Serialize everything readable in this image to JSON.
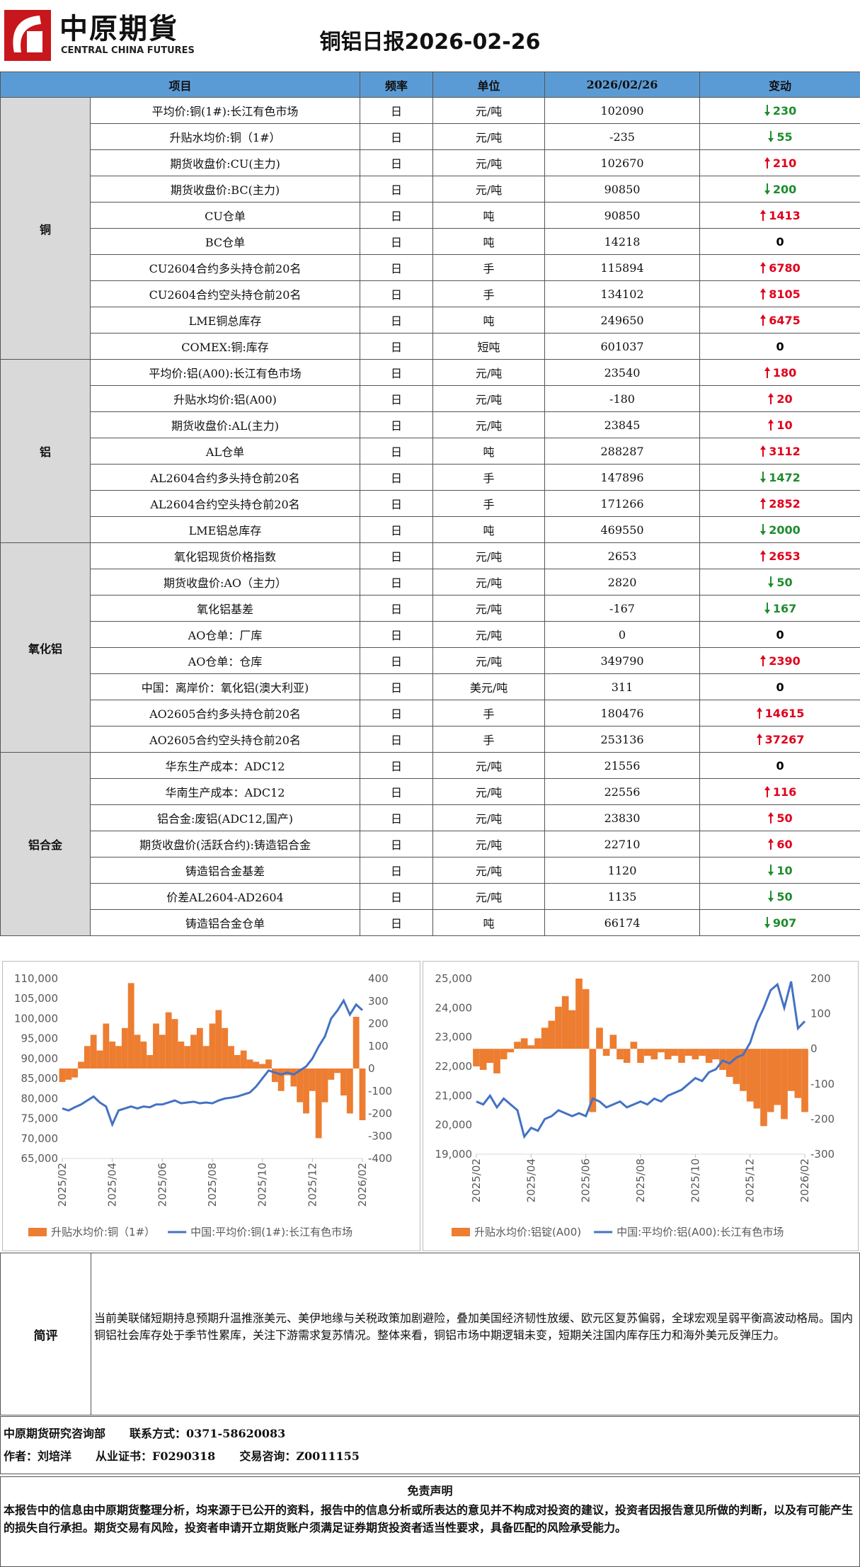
{
  "header": {
    "logo_cn": "中原期貨",
    "logo_en": "CENTRAL CHINA FUTURES",
    "title": "铜铝日报2026-02-26"
  },
  "table": {
    "headers": [
      "项目",
      "频率",
      "单位",
      "2026/02/26",
      "变动"
    ],
    "groups": [
      {
        "name": "铜",
        "rows": [
          {
            "item": "平均价:铜(1#):长江有色市场",
            "freq": "日",
            "unit": "元/吨",
            "value": "102090",
            "change": "230",
            "dir": "down"
          },
          {
            "item": "升贴水均价:铜（1#）",
            "freq": "日",
            "unit": "元/吨",
            "value": "-235",
            "change": "55",
            "dir": "down"
          },
          {
            "item": "期货收盘价:CU(主力)",
            "freq": "日",
            "unit": "元/吨",
            "value": "102670",
            "change": "210",
            "dir": "up"
          },
          {
            "item": "期货收盘价:BC(主力)",
            "freq": "日",
            "unit": "元/吨",
            "value": "90850",
            "change": "200",
            "dir": "down"
          },
          {
            "item": "CU仓单",
            "freq": "日",
            "unit": "吨",
            "value": "90850",
            "change": "1413",
            "dir": "up"
          },
          {
            "item": "BC仓单",
            "freq": "日",
            "unit": "吨",
            "value": "14218",
            "change": "0",
            "dir": "flat"
          },
          {
            "item": "CU2604合约多头持仓前20名",
            "freq": "日",
            "unit": "手",
            "value": "115894",
            "change": "6780",
            "dir": "up"
          },
          {
            "item": "CU2604合约空头持仓前20名",
            "freq": "日",
            "unit": "手",
            "value": "134102",
            "change": "8105",
            "dir": "up"
          },
          {
            "item": "LME铜总库存",
            "freq": "日",
            "unit": "吨",
            "value": "249650",
            "change": "6475",
            "dir": "up"
          },
          {
            "item": "COMEX:铜:库存",
            "freq": "日",
            "unit": "短吨",
            "value": "601037",
            "change": "0",
            "dir": "flat"
          }
        ]
      },
      {
        "name": "铝",
        "rows": [
          {
            "item": "平均价:铝(A00):长江有色市场",
            "freq": "日",
            "unit": "元/吨",
            "value": "23540",
            "change": "180",
            "dir": "up"
          },
          {
            "item": "升贴水均价:铝(A00)",
            "freq": "日",
            "unit": "元/吨",
            "value": "-180",
            "change": "20",
            "dir": "up"
          },
          {
            "item": "期货收盘价:AL(主力)",
            "freq": "日",
            "unit": "元/吨",
            "value": "23845",
            "change": "10",
            "dir": "up"
          },
          {
            "item": "AL仓单",
            "freq": "日",
            "unit": "吨",
            "value": "288287",
            "change": "3112",
            "dir": "up"
          },
          {
            "item": "AL2604合约多头持仓前20名",
            "freq": "日",
            "unit": "手",
            "value": "147896",
            "change": "1472",
            "dir": "down"
          },
          {
            "item": "AL2604合约空头持仓前20名",
            "freq": "日",
            "unit": "手",
            "value": "171266",
            "change": "2852",
            "dir": "up"
          },
          {
            "item": "LME铝总库存",
            "freq": "日",
            "unit": "吨",
            "value": "469550",
            "change": "2000",
            "dir": "down"
          }
        ]
      },
      {
        "name": "氧化铝",
        "rows": [
          {
            "item": "氧化铝现货价格指数",
            "freq": "日",
            "unit": "元/吨",
            "value": "2653",
            "change": "2653",
            "dir": "up"
          },
          {
            "item": "期货收盘价:AO（主力）",
            "freq": "日",
            "unit": "元/吨",
            "value": "2820",
            "change": "50",
            "dir": "down"
          },
          {
            "item": "氧化铝基差",
            "freq": "日",
            "unit": "元/吨",
            "value": "-167",
            "change": "167",
            "dir": "down"
          },
          {
            "item": "AO仓单：厂库",
            "freq": "日",
            "unit": "元/吨",
            "value": "0",
            "change": "0",
            "dir": "flat"
          },
          {
            "item": "AO仓单：仓库",
            "freq": "日",
            "unit": "元/吨",
            "value": "349790",
            "change": "2390",
            "dir": "up"
          },
          {
            "item": "中国：离岸价：氧化铝(澳大利亚)",
            "freq": "日",
            "unit": "美元/吨",
            "value": "311",
            "change": "0",
            "dir": "flat"
          },
          {
            "item": "AO2605合约多头持仓前20名",
            "freq": "日",
            "unit": "手",
            "value": "180476",
            "change": "14615",
            "dir": "up"
          },
          {
            "item": "AO2605合约空头持仓前20名",
            "freq": "日",
            "unit": "手",
            "value": "253136",
            "change": "37267",
            "dir": "up"
          }
        ]
      },
      {
        "name": "铝合金",
        "rows": [
          {
            "item": "华东生产成本：ADC12",
            "freq": "日",
            "unit": "元/吨",
            "value": "21556",
            "change": "0",
            "dir": "flat"
          },
          {
            "item": "华南生产成本：ADC12",
            "freq": "日",
            "unit": "元/吨",
            "value": "22556",
            "change": "116",
            "dir": "up"
          },
          {
            "item": "铝合金:废铝(ADC12,国产)",
            "freq": "日",
            "unit": "元/吨",
            "value": "23830",
            "change": "50",
            "dir": "up"
          },
          {
            "item": "期货收盘价(活跃合约):铸造铝合金",
            "freq": "日",
            "unit": "元/吨",
            "value": "22710",
            "change": "60",
            "dir": "up"
          },
          {
            "item": "铸造铝合金基差",
            "freq": "日",
            "unit": "元/吨",
            "value": "1120",
            "change": "10",
            "dir": "down"
          },
          {
            "item": "价差AL2604-AD2604",
            "freq": "日",
            "unit": "元/吨",
            "value": "1135",
            "change": "50",
            "dir": "down"
          },
          {
            "item": "铸造铝合金仓单",
            "freq": "日",
            "unit": "吨",
            "value": "66174",
            "change": "907",
            "dir": "down"
          }
        ]
      }
    ]
  },
  "chart_data": [
    {
      "type": "combo",
      "categories": [
        "2025/02",
        null,
        null,
        null,
        null,
        null,
        null,
        null,
        "2025/04",
        null,
        null,
        null,
        null,
        null,
        null,
        null,
        "2025/06",
        null,
        null,
        null,
        null,
        null,
        null,
        null,
        "2025/08",
        null,
        null,
        null,
        null,
        null,
        null,
        null,
        "2025/10",
        null,
        null,
        null,
        null,
        null,
        null,
        null,
        "2025/12",
        null,
        null,
        null,
        null,
        null,
        null,
        null,
        "2026/02"
      ],
      "series": [
        {
          "name": "升贴水均价:铜（1#）",
          "color": "#ed7d31",
          "type": "bar",
          "axis": "y2",
          "values": [
            -60,
            -50,
            -40,
            30,
            100,
            150,
            80,
            200,
            120,
            100,
            180,
            380,
            150,
            120,
            60,
            200,
            150,
            250,
            220,
            120,
            100,
            150,
            180,
            100,
            200,
            260,
            180,
            100,
            60,
            80,
            40,
            30,
            20,
            40,
            -60,
            -100,
            -30,
            -80,
            -150,
            -200,
            -100,
            -310,
            -150,
            -50,
            -20,
            -120,
            -200,
            230,
            -230
          ]
        },
        {
          "name": "中国:平均价:铜(1#):长江有色市场",
          "color": "#4472c4",
          "type": "line",
          "values": [
            77500,
            77000,
            77800,
            78500,
            79500,
            80500,
            79000,
            78000,
            73500,
            77000,
            77500,
            78000,
            77500,
            78000,
            77800,
            78500,
            78500,
            79000,
            79500,
            78800,
            79000,
            79200,
            78800,
            79000,
            78800,
            79500,
            80000,
            80200,
            80500,
            81000,
            81500,
            83000,
            85000,
            87000,
            86500,
            86000,
            86500,
            86000,
            87000,
            88000,
            90000,
            93000,
            95500,
            100000,
            102000,
            104500,
            101000,
            103500,
            102090
          ]
        }
      ],
      "ylim": [
        65000,
        110000
      ],
      "yticks": [
        {
          "value": 65000,
          "label": "65,000"
        },
        {
          "value": 70000,
          "label": "70,000"
        },
        {
          "value": 75000,
          "label": "75,000"
        },
        {
          "value": 80000,
          "label": "80,000"
        },
        {
          "value": 85000,
          "label": "85,000"
        },
        {
          "value": 90000,
          "label": "90,000"
        },
        {
          "value": 95000,
          "label": "95,000"
        },
        {
          "value": 100000,
          "label": "100,000"
        },
        {
          "value": 105000,
          "label": "105,000"
        },
        {
          "value": 110000,
          "label": "110,000"
        }
      ],
      "y2lim": [
        -400,
        400
      ],
      "y2ticks": [
        -400,
        -300,
        -200,
        -100,
        0,
        100,
        200,
        300,
        400
      ]
    },
    {
      "type": "combo",
      "categories": [
        "2025/02",
        null,
        null,
        null,
        null,
        null,
        null,
        null,
        "2025/04",
        null,
        null,
        null,
        null,
        null,
        null,
        null,
        "2025/06",
        null,
        null,
        null,
        null,
        null,
        null,
        null,
        "2025/08",
        null,
        null,
        null,
        null,
        null,
        null,
        null,
        "2025/10",
        null,
        null,
        null,
        null,
        null,
        null,
        null,
        "2025/12",
        null,
        null,
        null,
        null,
        null,
        null,
        null,
        "2026/02"
      ],
      "series": [
        {
          "name": "升贴水均价:铝锭(A00)",
          "color": "#ed7d31",
          "type": "bar",
          "axis": "y2",
          "values": [
            -50,
            -60,
            -40,
            -70,
            -30,
            -10,
            20,
            30,
            10,
            30,
            60,
            80,
            120,
            150,
            110,
            200,
            170,
            -180,
            60,
            -20,
            40,
            -30,
            -40,
            20,
            -40,
            -20,
            -30,
            -10,
            -30,
            -20,
            -40,
            -20,
            -30,
            -20,
            -40,
            -30,
            -60,
            -80,
            -100,
            -120,
            -150,
            -170,
            -220,
            -180,
            -160,
            -200,
            -120,
            -140,
            -180
          ]
        },
        {
          "name": "中国:平均价:铝(A00):长江有色市场",
          "color": "#4472c4",
          "type": "line",
          "values": [
            20800,
            20700,
            21000,
            20600,
            20900,
            20700,
            20500,
            19600,
            19900,
            19800,
            20200,
            20300,
            20500,
            20400,
            20300,
            20400,
            20300,
            20900,
            20800,
            20600,
            20700,
            20800,
            20600,
            20700,
            20800,
            20700,
            20900,
            20800,
            21000,
            21100,
            21200,
            21400,
            21600,
            21500,
            21800,
            21900,
            22200,
            22100,
            22300,
            22400,
            22800,
            23500,
            24000,
            24600,
            24800,
            24000,
            24900,
            23300,
            23540
          ]
        }
      ],
      "ylim": [
        19000,
        25000
      ],
      "yticks": [
        {
          "value": 19000,
          "label": "19,000"
        },
        {
          "value": 20000,
          "label": "20,000"
        },
        {
          "value": 21000,
          "label": "21,000"
        },
        {
          "value": 22000,
          "label": "22,000"
        },
        {
          "value": 23000,
          "label": "23,000"
        },
        {
          "value": 24000,
          "label": "24,000"
        },
        {
          "value": 25000,
          "label": "25,000"
        }
      ],
      "y2lim": [
        -300,
        200
      ],
      "y2ticks": [
        -300,
        -200,
        -100,
        0,
        100,
        200
      ]
    }
  ],
  "comment": {
    "label": "简评",
    "text": "当前美联储短期持息预期升温推涨美元、美伊地缘与关税政策加剧避险，叠加美国经济韧性放缓、欧元区复苏偏弱，全球宏观呈弱平衡高波动格局。国内铜铝社会库存处于季节性累库，关注下游需求复苏情况。整体来看，铜铝市场中期逻辑未变，短期关注国内库存压力和海外美元反弹压力。"
  },
  "footer": {
    "lines": [
      [
        "中原期货研究咨询部",
        "联系方式：0371-58620083"
      ],
      [
        "作者：刘培洋",
        "从业证书：F0290318",
        "交易咨询：Z0011155"
      ]
    ]
  },
  "disclaimer": {
    "title": "免责声明",
    "text": "本报告中的信息由中原期货整理分析，均来源于已公开的资料，报告中的信息分析或所表达的意见并不构成对投资的建议，投资者因报告意见所做的判断，以及有可能产生的损失自行承担。期货交易有风险，投资者申请开立期货账户须满足证券期货投资者适当性要求，具备匹配的风险承受能力。"
  }
}
